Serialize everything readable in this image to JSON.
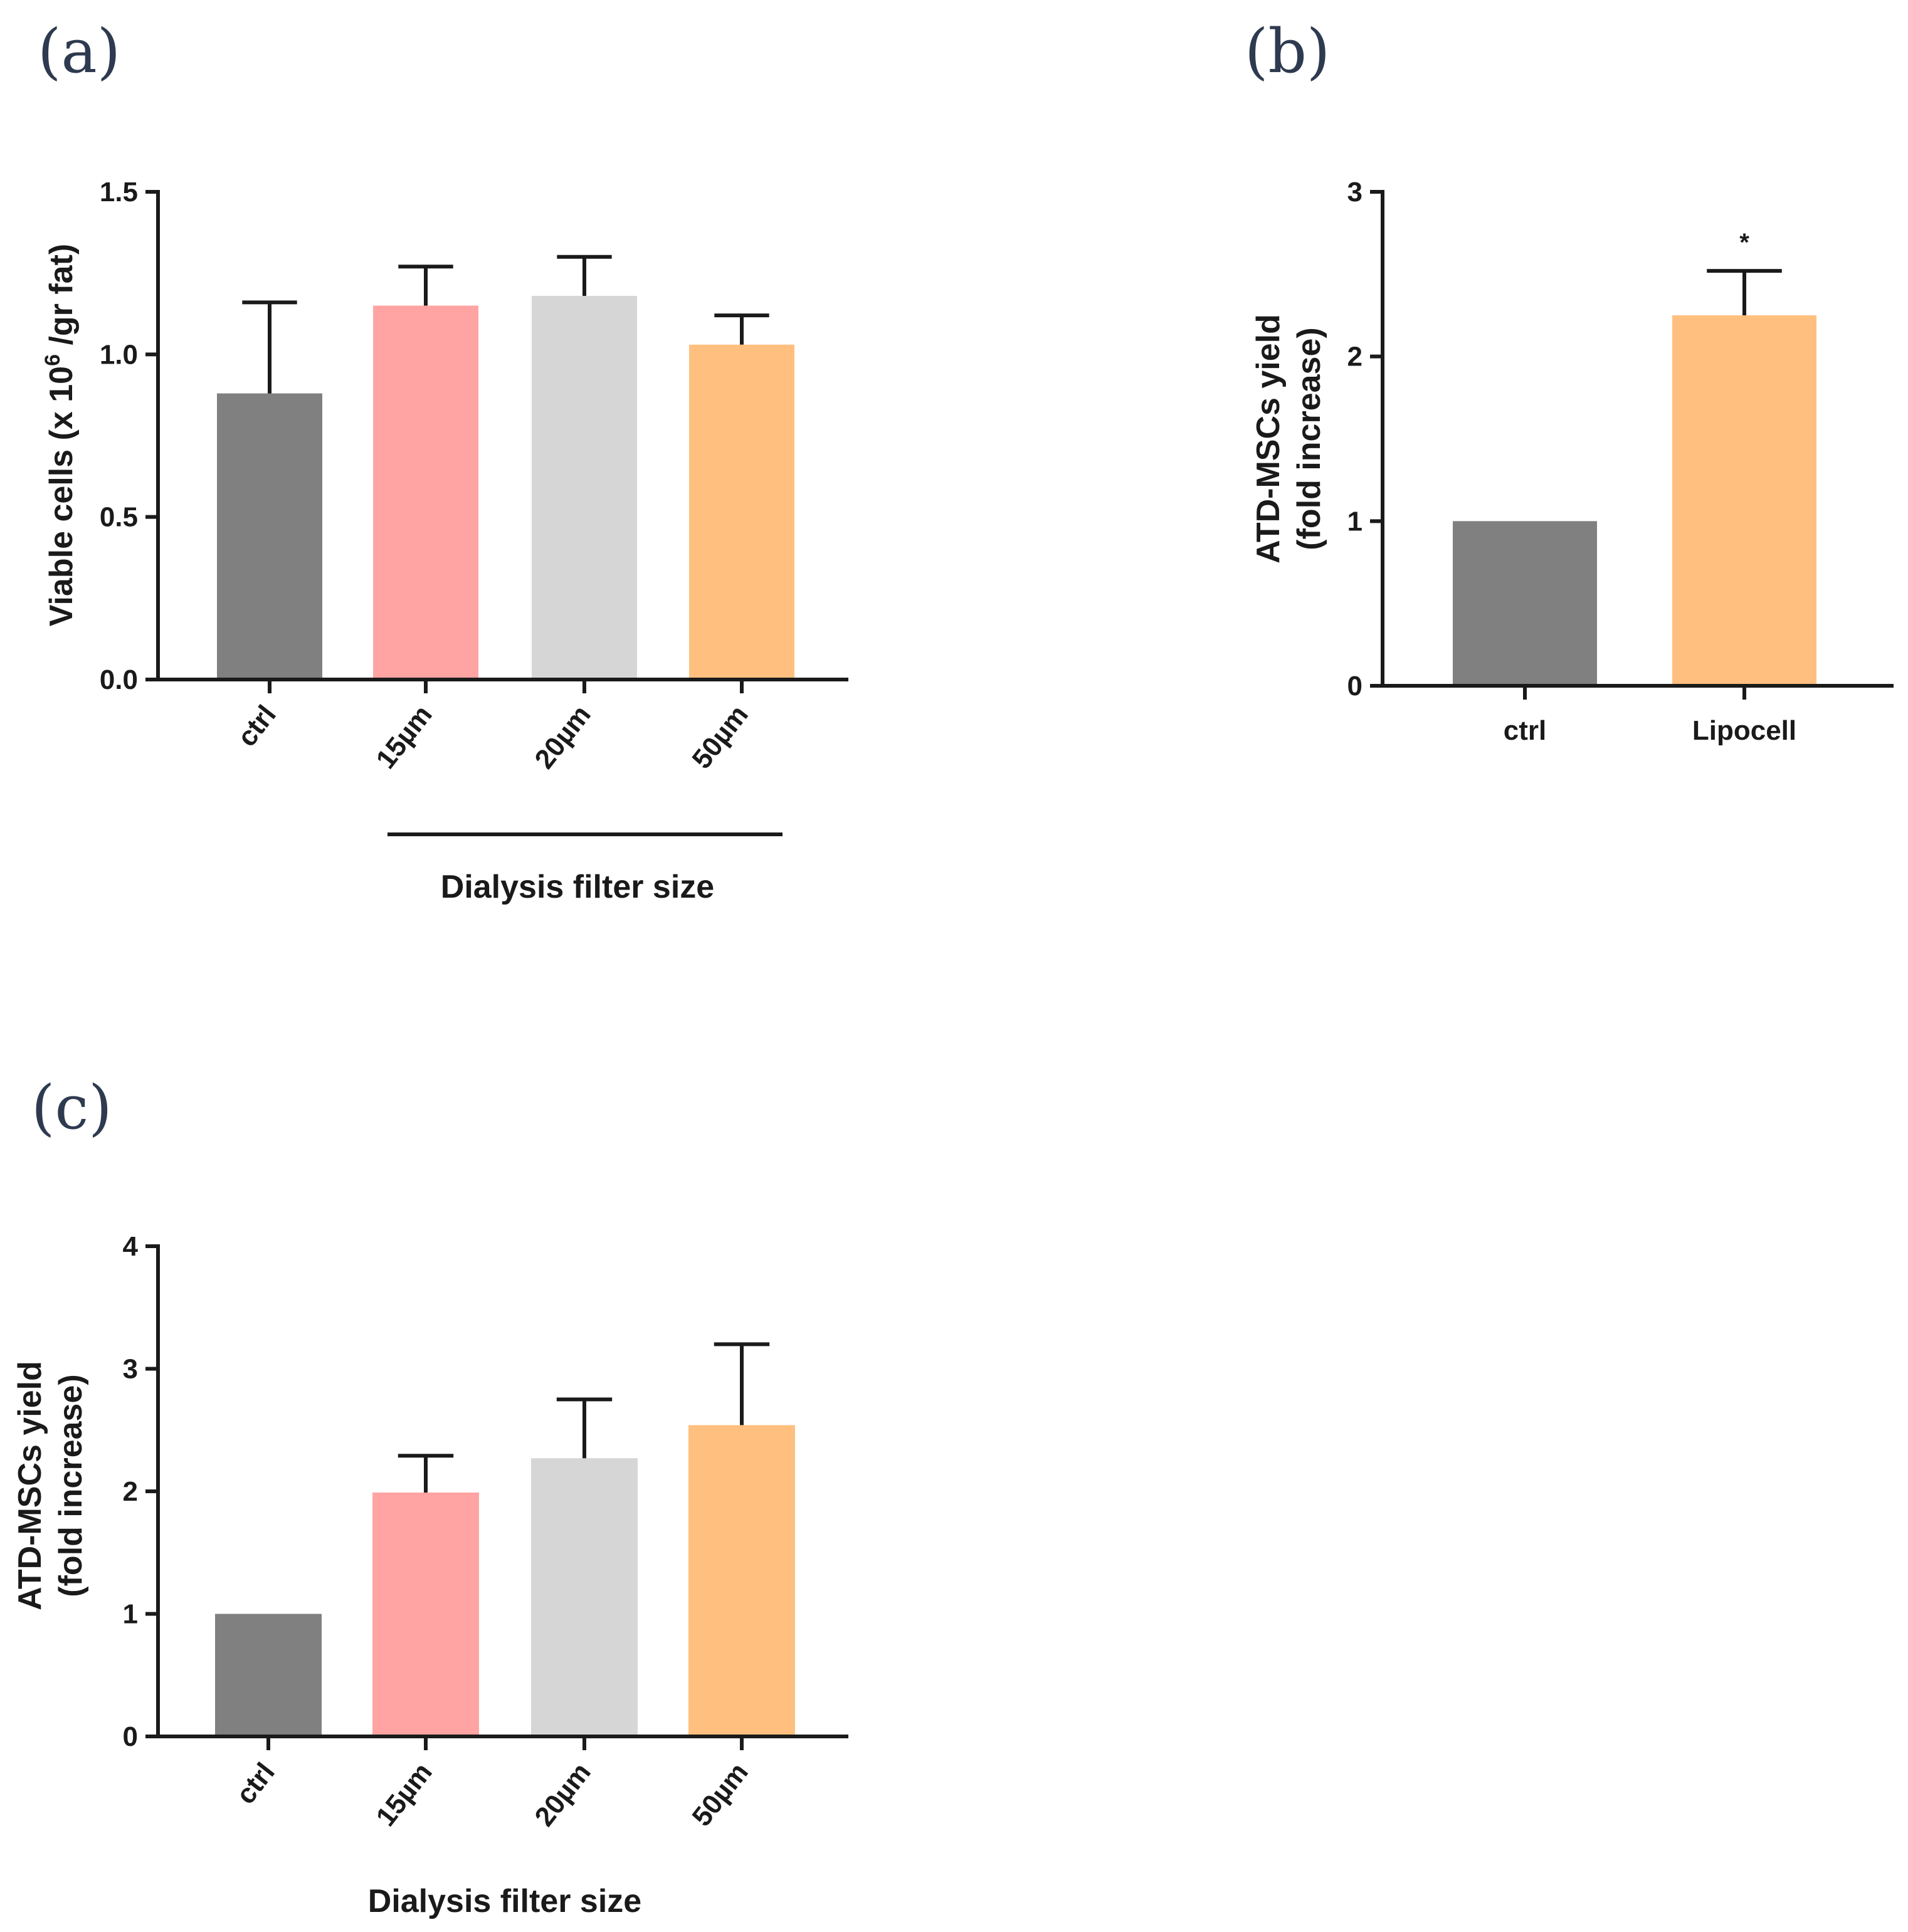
{
  "colors": {
    "ctrl": "#808080",
    "15um": "#ffa3a3",
    "20um": "#d6d6d6",
    "50um": "#ffc07f",
    "lipocell": "#ffc07f",
    "axis": "#1a1a1a"
  },
  "chart_data": [
    {
      "panel_label": "(a)",
      "type": "bar",
      "categories": [
        "ctrl",
        "15µm",
        "20µm",
        "50µm"
      ],
      "values": [
        0.88,
        1.15,
        1.18,
        1.03
      ],
      "errors": [
        0.28,
        0.12,
        0.12,
        0.09
      ],
      "bar_colors": [
        "#808080",
        "#ffa3a3",
        "#d6d6d6",
        "#ffc07f"
      ],
      "ylabel_main": "Viable cells (x 10",
      "ylabel_sup": "6",
      "ylabel_rest": " /gr fat)",
      "xlabel": "Dialysis filter size",
      "group_line": "15µm–50µm",
      "ylim": [
        0,
        1.5
      ],
      "yticks": [
        "0.0",
        "0.5",
        "1.0",
        "1.5"
      ],
      "ytick_values": [
        0,
        0.5,
        1.0,
        1.5
      ],
      "rotated_xticks": true
    },
    {
      "panel_label": "(b)",
      "type": "bar",
      "categories": [
        "ctrl",
        "Lipocell"
      ],
      "values": [
        1.0,
        2.25
      ],
      "errors": [
        0,
        0.27
      ],
      "bar_colors": [
        "#808080",
        "#ffc07f"
      ],
      "ylabel_line1": "ATD-MSCs yield",
      "ylabel_line2": "(fold increase)",
      "significance": "*",
      "ylim": [
        0,
        3
      ],
      "yticks": [
        "0",
        "1",
        "2",
        "3"
      ],
      "ytick_values": [
        0,
        1,
        2,
        3
      ],
      "rotated_xticks": false
    },
    {
      "panel_label": "(c)",
      "type": "bar",
      "categories": [
        "ctrl",
        "15µm",
        "20µm",
        "50µm"
      ],
      "values": [
        1.0,
        1.99,
        2.27,
        2.54
      ],
      "errors": [
        0,
        0.3,
        0.48,
        0.66
      ],
      "bar_colors": [
        "#808080",
        "#ffa3a3",
        "#d6d6d6",
        "#ffc07f"
      ],
      "ylabel_line1": "ATD-MSCs yield",
      "ylabel_line2": "(fold increase)",
      "xlabel": "Dialysis filter size",
      "ylim": [
        0,
        4
      ],
      "yticks": [
        "0",
        "1",
        "2",
        "3",
        "4"
      ],
      "ytick_values": [
        0,
        1,
        2,
        3,
        4
      ],
      "rotated_xticks": true
    }
  ]
}
